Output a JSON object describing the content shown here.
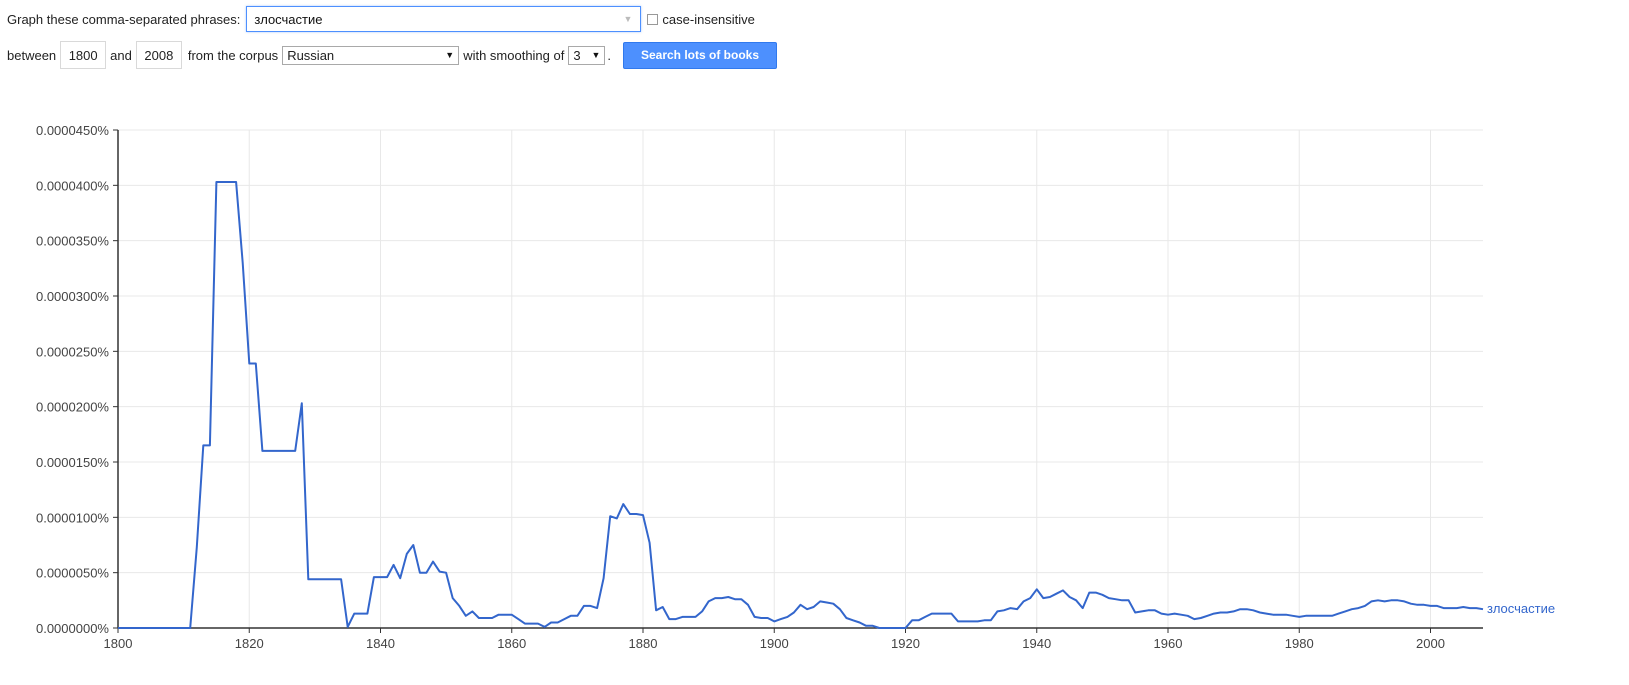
{
  "controls": {
    "phrases_label": "Graph these comma-separated phrases:",
    "phrase_value": "злосчастие",
    "case_insensitive_label": "case-insensitive",
    "between_label": "between",
    "start_year": "1800",
    "and_label": "and",
    "end_year": "2008",
    "corpus_label": "from the corpus",
    "corpus_value": "Russian",
    "smoothing_label": "with smoothing of",
    "smoothing_value": "3",
    "period": ".",
    "search_button": "Search lots of books"
  },
  "colors": {
    "series": "#3366cc",
    "grid": "#e8e8e8",
    "axis": "#333333",
    "button": "#4d90fe"
  },
  "chart_data": {
    "type": "line",
    "title": "",
    "xlabel": "",
    "ylabel": "",
    "xlim": [
      1800,
      2008
    ],
    "ylim": [
      0,
      4.5e-07
    ],
    "x_ticks": [
      1800,
      1820,
      1840,
      1860,
      1880,
      1900,
      1920,
      1940,
      1960,
      1980,
      2000
    ],
    "y_tick_values": [
      0,
      5e-08,
      1e-07,
      1.5e-07,
      2e-07,
      2.5e-07,
      3e-07,
      3.5e-07,
      4e-07,
      4.5e-07
    ],
    "y_ticks": [
      "0.0000000%",
      "0.0000050%",
      "0.0000100%",
      "0.0000150%",
      "0.0000200%",
      "0.0000250%",
      "0.0000300%",
      "0.0000350%",
      "0.0000400%",
      "0.0000450%"
    ],
    "grid": true,
    "series": [
      {
        "name": "злосчастие",
        "x": [
          1800,
          1811,
          1812,
          1813,
          1814,
          1815,
          1816,
          1817,
          1818,
          1819,
          1820,
          1821,
          1822,
          1823,
          1824,
          1825,
          1826,
          1827,
          1828,
          1829,
          1830,
          1831,
          1832,
          1833,
          1834,
          1835,
          1836,
          1837,
          1838,
          1839,
          1840,
          1841,
          1842,
          1843,
          1844,
          1845,
          1846,
          1847,
          1848,
          1849,
          1850,
          1851,
          1852,
          1853,
          1854,
          1855,
          1856,
          1857,
          1858,
          1859,
          1860,
          1861,
          1862,
          1863,
          1864,
          1865,
          1866,
          1867,
          1868,
          1869,
          1870,
          1871,
          1872,
          1873,
          1874,
          1875,
          1876,
          1877,
          1878,
          1879,
          1880,
          1881,
          1882,
          1883,
          1884,
          1885,
          1886,
          1887,
          1888,
          1889,
          1890,
          1891,
          1892,
          1893,
          1894,
          1895,
          1896,
          1897,
          1898,
          1899,
          1900,
          1901,
          1902,
          1903,
          1904,
          1905,
          1906,
          1907,
          1908,
          1909,
          1910,
          1911,
          1912,
          1913,
          1914,
          1915,
          1916,
          1917,
          1918,
          1919,
          1920,
          1921,
          1922,
          1923,
          1924,
          1925,
          1926,
          1927,
          1928,
          1929,
          1930,
          1931,
          1932,
          1933,
          1934,
          1935,
          1936,
          1937,
          1938,
          1939,
          1940,
          1941,
          1942,
          1943,
          1944,
          1945,
          1946,
          1947,
          1948,
          1949,
          1950,
          1951,
          1952,
          1953,
          1954,
          1955,
          1956,
          1957,
          1958,
          1959,
          1960,
          1961,
          1962,
          1963,
          1964,
          1965,
          1966,
          1967,
          1968,
          1969,
          1970,
          1971,
          1972,
          1973,
          1974,
          1975,
          1976,
          1977,
          1978,
          1979,
          1980,
          1981,
          1982,
          1983,
          1984,
          1985,
          1986,
          1987,
          1988,
          1989,
          1990,
          1991,
          1992,
          1993,
          1994,
          1995,
          1996,
          1997,
          1998,
          1999,
          2000,
          2001,
          2002,
          2003,
          2004,
          2005,
          2006,
          2007,
          2008
        ],
        "y": [
          0,
          0,
          7.3e-08,
          1.65e-07,
          1.65e-07,
          4.03e-07,
          4.03e-07,
          4.03e-07,
          4.03e-07,
          3.3e-07,
          2.39e-07,
          2.39e-07,
          1.6e-07,
          1.6e-07,
          1.6e-07,
          1.6e-07,
          1.6e-07,
          1.6e-07,
          2.03e-07,
          4.4e-08,
          4.4e-08,
          4.4e-08,
          4.4e-08,
          4.4e-08,
          4.4e-08,
          1e-09,
          1.3e-08,
          1.3e-08,
          1.3e-08,
          4.6e-08,
          4.6e-08,
          4.6e-08,
          5.7e-08,
          4.5e-08,
          6.7e-08,
          7.5e-08,
          5e-08,
          5e-08,
          6e-08,
          5.1e-08,
          5e-08,
          2.7e-08,
          2e-08,
          1.1e-08,
          1.5e-08,
          9e-09,
          9e-09,
          9e-09,
          1.2e-08,
          1.2e-08,
          1.2e-08,
          8e-09,
          4e-09,
          4e-09,
          4e-09,
          1e-09,
          5e-09,
          5e-09,
          8e-09,
          1.1e-08,
          1.1e-08,
          2e-08,
          2e-08,
          1.8e-08,
          4.5e-08,
          1.01e-07,
          9.9e-08,
          1.12e-07,
          1.03e-07,
          1.03e-07,
          1.02e-07,
          7.7e-08,
          1.6e-08,
          1.9e-08,
          8e-09,
          8e-09,
          1e-08,
          1e-08,
          1e-08,
          1.5e-08,
          2.4e-08,
          2.7e-08,
          2.7e-08,
          2.8e-08,
          2.6e-08,
          2.6e-08,
          2.1e-08,
          1e-08,
          9e-09,
          9e-09,
          6e-09,
          8e-09,
          1e-08,
          1.4e-08,
          2.1e-08,
          1.7e-08,
          1.9e-08,
          2.4e-08,
          2.3e-08,
          2.2e-08,
          1.7e-08,
          9e-09,
          7e-09,
          5e-09,
          2e-09,
          2e-09,
          0,
          0,
          0,
          0,
          0,
          7e-09,
          7e-09,
          1e-08,
          1.3e-08,
          1.3e-08,
          1.3e-08,
          1.3e-08,
          6e-09,
          6e-09,
          6e-09,
          6e-09,
          7e-09,
          7e-09,
          1.5e-08,
          1.6e-08,
          1.8e-08,
          1.7e-08,
          2.4e-08,
          2.7e-08,
          3.5e-08,
          2.7e-08,
          2.8e-08,
          3.1e-08,
          3.4e-08,
          2.8e-08,
          2.5e-08,
          1.8e-08,
          3.2e-08,
          3.2e-08,
          3e-08,
          2.7e-08,
          2.6e-08,
          2.5e-08,
          2.5e-08,
          1.4e-08,
          1.5e-08,
          1.6e-08,
          1.6e-08,
          1.3e-08,
          1.2e-08,
          1.3e-08,
          1.2e-08,
          1.1e-08,
          8e-09,
          9e-09,
          1.1e-08,
          1.3e-08,
          1.4e-08,
          1.4e-08,
          1.5e-08,
          1.7e-08,
          1.7e-08,
          1.6e-08,
          1.4e-08,
          1.3e-08,
          1.2e-08,
          1.2e-08,
          1.2e-08,
          1.1e-08,
          1e-08,
          1.1e-08,
          1.1e-08,
          1.1e-08,
          1.1e-08,
          1.1e-08,
          1.3e-08,
          1.5e-08,
          1.7e-08,
          1.8e-08,
          2e-08,
          2.4e-08,
          2.5e-08,
          2.4e-08,
          2.5e-08,
          2.5e-08,
          2.4e-08,
          2.2e-08,
          2.1e-08,
          2.1e-08,
          2e-08,
          2e-08,
          1.8e-08,
          1.8e-08,
          1.8e-08,
          1.9e-08,
          1.8e-08,
          1.8e-08,
          1.7e-08
        ]
      }
    ]
  }
}
